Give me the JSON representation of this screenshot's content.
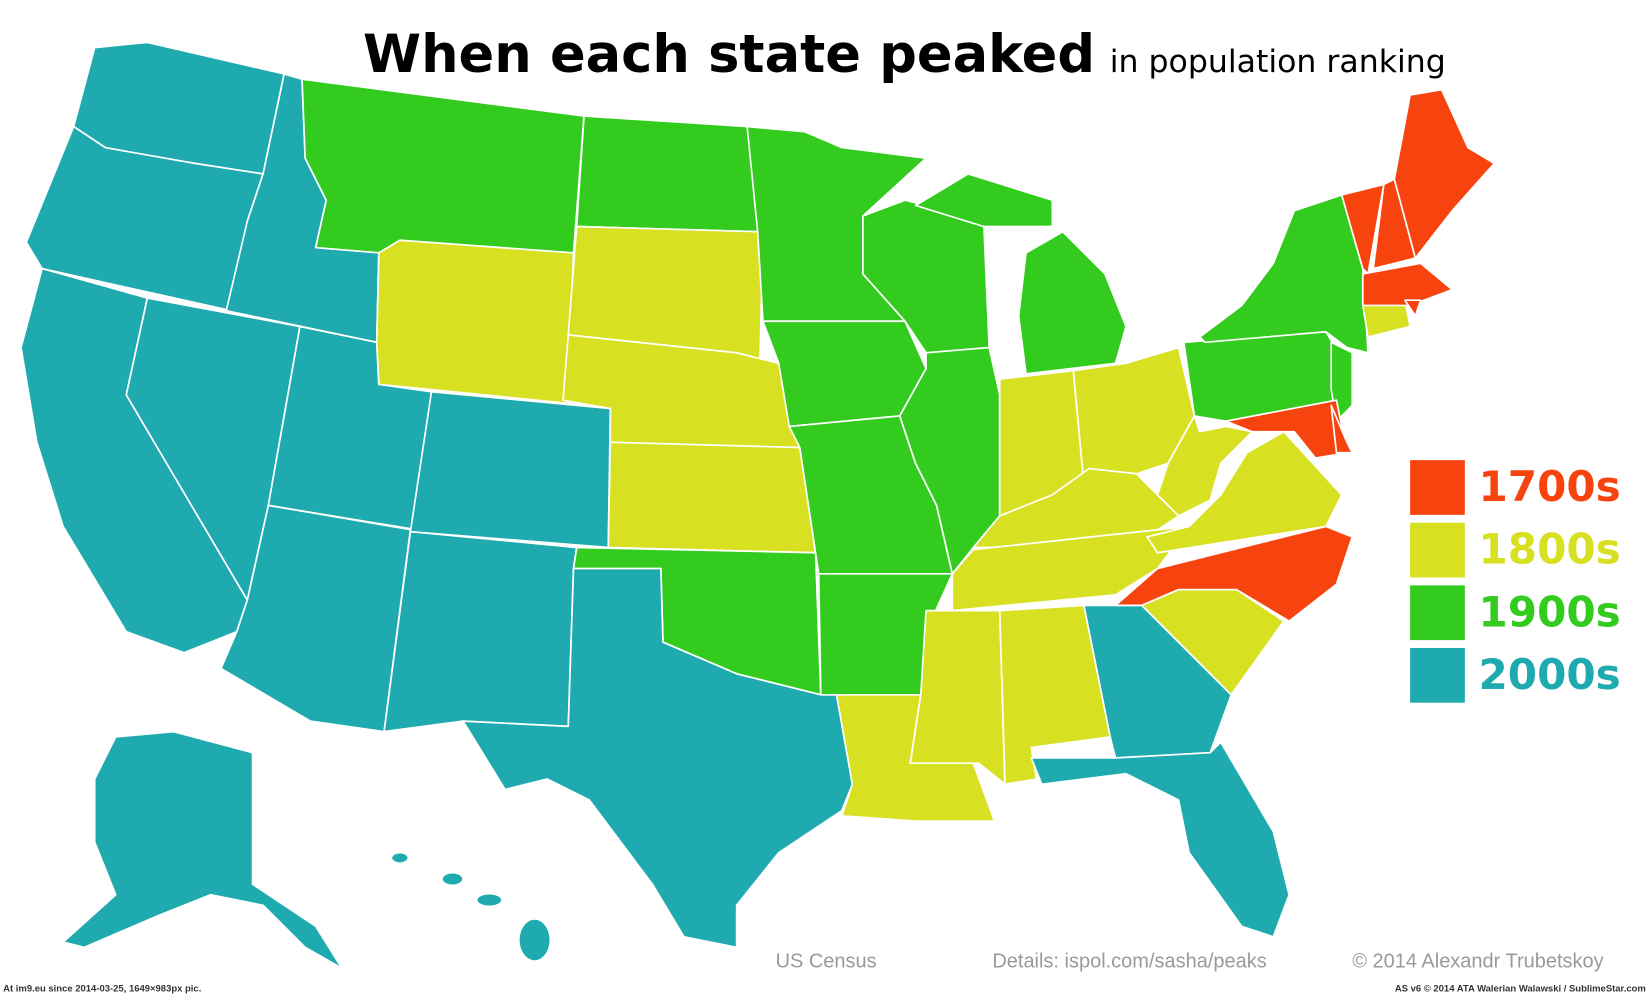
{
  "title": "When each state peaked",
  "subtitle": "in population ranking",
  "legend": {
    "items": [
      {
        "label": "1700s",
        "color": "#f7440e"
      },
      {
        "label": "1800s",
        "color": "#d8e022"
      },
      {
        "label": "1900s",
        "color": "#33cb1e"
      },
      {
        "label": "2000s",
        "color": "#1eaaae"
      }
    ]
  },
  "footer": {
    "source": "US Census",
    "details": "Details: ispol.com/sasha/peaks",
    "credit": "© 2014 Alexandr Trubetskoy"
  },
  "watermark": {
    "left": "At im9.eu  since 2014-03-25, 1649×983px pic.",
    "right": "AS v6 © 2014 ATA Walerian Walawski / SublimeStar.com"
  }
}
